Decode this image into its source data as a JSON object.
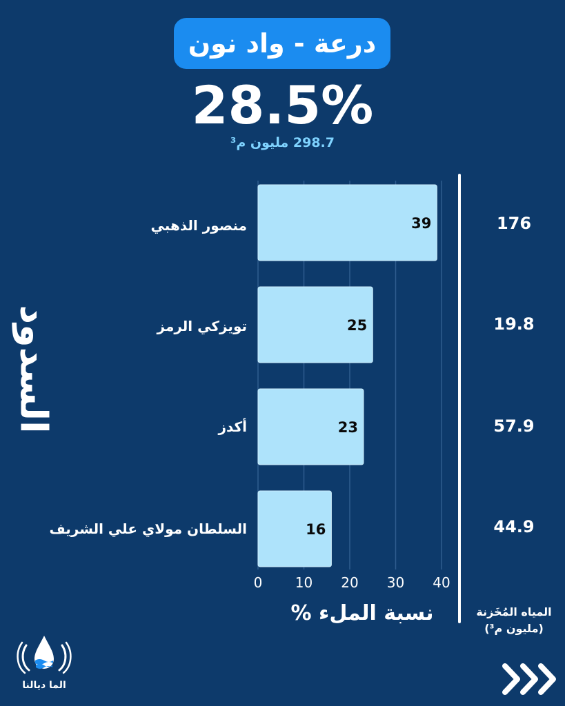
{
  "header": {
    "title": "درعة - واد نون",
    "percentage": "28.5%",
    "volume": "298.7 مليون م³"
  },
  "y_axis_title": "السدود",
  "stored_column": {
    "title": "المياه المُخَزنة",
    "unit": "(مليون م³)"
  },
  "logo": {
    "text": "الما ديالنا"
  },
  "colors": {
    "background": "#0d3a6b",
    "title_pill": "#1b8cf0",
    "bar": "#aee3fb",
    "bar_stroke": "#cdeefc",
    "subtitle": "#7fd3ff"
  },
  "chart_data": {
    "type": "bar",
    "orientation": "horizontal",
    "categories": [
      "منصور الذهبي",
      "تويزكي الرمز",
      "أكدز",
      "السلطان مولاي علي الشريف"
    ],
    "values": [
      39,
      25,
      23,
      16
    ],
    "stored_volume": [
      "176",
      "19.8",
      "57.9",
      "44.9"
    ],
    "xlabel": "نسبة الملء %",
    "ylabel": "السدود",
    "xlim": [
      0,
      40
    ],
    "xticks": [
      0,
      10,
      20,
      30,
      40
    ],
    "grid": true
  }
}
